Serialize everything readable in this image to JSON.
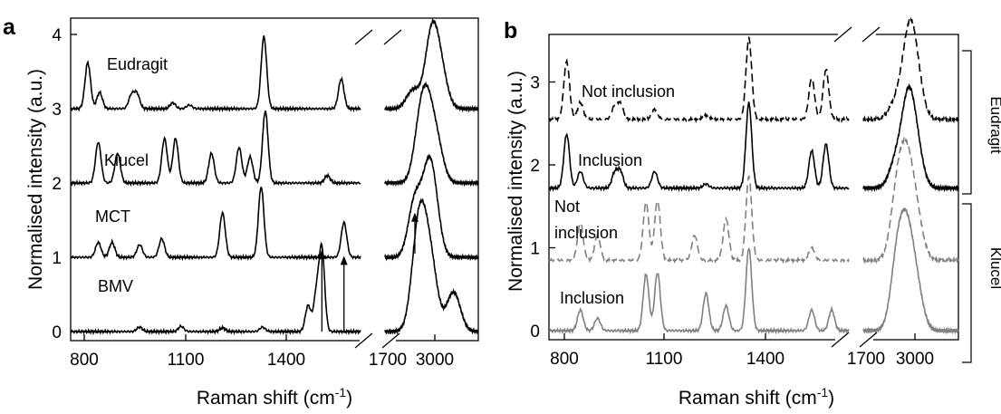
{
  "panels": [
    {
      "label": "a",
      "xlabel": "Raman shift (cm",
      "xlabel_sup": "-1",
      "xlabel_end": ")",
      "ylabel": "Normalised intensity (a.u.)",
      "yticks": [
        "0",
        "1",
        "2",
        "3",
        "4"
      ],
      "xticks": [
        "800",
        "1100",
        "1400",
        "1700",
        "3000"
      ]
    },
    {
      "label": "b",
      "xlabel": "Raman shift (cm",
      "xlabel_sup": "-1",
      "xlabel_end": ")",
      "ylabel": "Normalised intensity (a.u.)",
      "yticks": [
        "0",
        "1",
        "2",
        "3"
      ],
      "xticks": [
        "800",
        "1100",
        "1400",
        "1700",
        "3000"
      ]
    }
  ],
  "series_labels": {
    "a": [
      "Eudragit",
      "Klucel",
      "MCT",
      "BMV"
    ],
    "b": [
      "Not inclusion",
      "Inclusion",
      "Not",
      "inclusion",
      "Inclusion"
    ]
  },
  "group_labels": [
    "Eudragit",
    "Klucel"
  ],
  "colors": {
    "black": "#000000",
    "gray": "#808080"
  },
  "chart_data": [
    {
      "type": "line",
      "panel": "a",
      "x_axis_segments": [
        [
          750,
          1800
        ],
        [
          2700,
          3200
        ]
      ],
      "xticks": [
        800,
        1100,
        1400,
        1700,
        3000
      ],
      "ylim": [
        -0.1,
        4.1
      ],
      "grid": false,
      "series": [
        {
          "name": "Eudragit",
          "baseline": 3.0,
          "peaks": [
            [
              812,
              0.62
            ],
            [
              855,
              0.22
            ],
            [
              970,
              0.18
            ],
            [
              990,
              0.2
            ],
            [
              1120,
              0.08
            ],
            [
              1180,
              0.05
            ],
            [
              1450,
              0.97
            ],
            [
              1730,
              0.4
            ],
            [
              2850,
              0.25
            ],
            [
              2950,
              0.98
            ],
            [
              3000,
              0.45
            ]
          ]
        },
        {
          "name": "Klucel",
          "baseline": 2.0,
          "peaks": [
            [
              850,
              0.55
            ],
            [
              920,
              0.4
            ],
            [
              1090,
              0.6
            ],
            [
              1130,
              0.6
            ],
            [
              1260,
              0.4
            ],
            [
              1360,
              0.48
            ],
            [
              1400,
              0.35
            ],
            [
              1455,
              0.97
            ],
            [
              1680,
              0.1
            ],
            [
              2890,
              0.72
            ],
            [
              2930,
              0.75
            ],
            [
              2980,
              0.45
            ]
          ]
        },
        {
          "name": "MCT",
          "baseline": 1.0,
          "peaks": [
            [
              850,
              0.2
            ],
            [
              900,
              0.2
            ],
            [
              1000,
              0.17
            ],
            [
              1080,
              0.25
            ],
            [
              1300,
              0.6
            ],
            [
              1440,
              0.95
            ],
            [
              1740,
              0.47
            ],
            [
              2860,
              0.75
            ],
            [
              2930,
              0.82
            ],
            [
              2960,
              0.6
            ]
          ]
        },
        {
          "name": "BMV",
          "baseline": 0.0,
          "peaks": [
            [
              1000,
              0.06
            ],
            [
              1150,
              0.07
            ],
            [
              1300,
              0.05
            ],
            [
              1445,
              0.06
            ],
            [
              1610,
              0.35
            ],
            [
              1640,
              0.5
            ],
            [
              1660,
              1.1
            ],
            [
              2870,
              0.78
            ],
            [
              2900,
              0.95
            ],
            [
              2950,
              0.75
            ],
            [
              3060,
              0.35
            ],
            [
              3080,
              0.2
            ]
          ]
        }
      ],
      "annotations": [
        {
          "type": "arrow",
          "x": 1660,
          "y_from": 0.0,
          "y_to": 1.1
        },
        {
          "type": "arrow",
          "x": 1740,
          "y_from": 0.0,
          "y_to": 1.02
        },
        {
          "type": "arrow",
          "x": 2860,
          "y_from": 1.05,
          "y_to": 1.6
        }
      ]
    },
    {
      "type": "line",
      "panel": "b",
      "x_axis_segments": [
        [
          750,
          1800
        ],
        [
          2700,
          3200
        ]
      ],
      "xticks": [
        800,
        1100,
        1400,
        1700,
        3000
      ],
      "ylim": [
        -0.1,
        3.6
      ],
      "grid": false,
      "series": [
        {
          "name": "Eudragit Not inclusion",
          "style": "dashed",
          "color": "#000000",
          "baseline": 2.55,
          "peaks": [
            [
              812,
              0.7
            ],
            [
              860,
              0.2
            ],
            [
              980,
              0.15
            ],
            [
              1000,
              0.18
            ],
            [
              1120,
              0.12
            ],
            [
              1300,
              0.05
            ],
            [
              1450,
              0.98
            ],
            [
              1670,
              0.5
            ],
            [
              1720,
              0.6
            ],
            [
              2870,
              0.2
            ],
            [
              2940,
              0.95
            ],
            [
              2980,
              0.4
            ]
          ]
        },
        {
          "name": "Eudragit Inclusion",
          "style": "solid",
          "color": "#000000",
          "baseline": 1.72,
          "peaks": [
            [
              812,
              0.65
            ],
            [
              860,
              0.2
            ],
            [
              980,
              0.18
            ],
            [
              1000,
              0.2
            ],
            [
              1120,
              0.2
            ],
            [
              1300,
              0.05
            ],
            [
              1450,
              1.03
            ],
            [
              1670,
              0.45
            ],
            [
              1720,
              0.53
            ],
            [
              2870,
              0.3
            ],
            [
              2935,
              0.98
            ],
            [
              2980,
              0.4
            ]
          ]
        },
        {
          "name": "Klucel Not inclusion",
          "style": "dashed",
          "color": "#808080",
          "baseline": 0.85,
          "peaks": [
            [
              860,
              0.45
            ],
            [
              920,
              0.3
            ],
            [
              1090,
              0.7
            ],
            [
              1130,
              0.72
            ],
            [
              1260,
              0.3
            ],
            [
              1370,
              0.5
            ],
            [
              1450,
              1.02
            ],
            [
              1670,
              0.15
            ],
            [
              2880,
              0.8
            ],
            [
              2930,
              0.97
            ],
            [
              2980,
              0.45
            ]
          ]
        },
        {
          "name": "Klucel Inclusion",
          "style": "solid",
          "color": "#808080",
          "baseline": 0.0,
          "peaks": [
            [
              860,
              0.25
            ],
            [
              920,
              0.15
            ],
            [
              1090,
              0.68
            ],
            [
              1130,
              0.7
            ],
            [
              1300,
              0.45
            ],
            [
              1370,
              0.3
            ],
            [
              1450,
              1.0
            ],
            [
              1670,
              0.25
            ],
            [
              1740,
              0.25
            ],
            [
              2880,
              0.85
            ],
            [
              2930,
              0.95
            ],
            [
              2980,
              0.45
            ]
          ]
        }
      ]
    }
  ]
}
